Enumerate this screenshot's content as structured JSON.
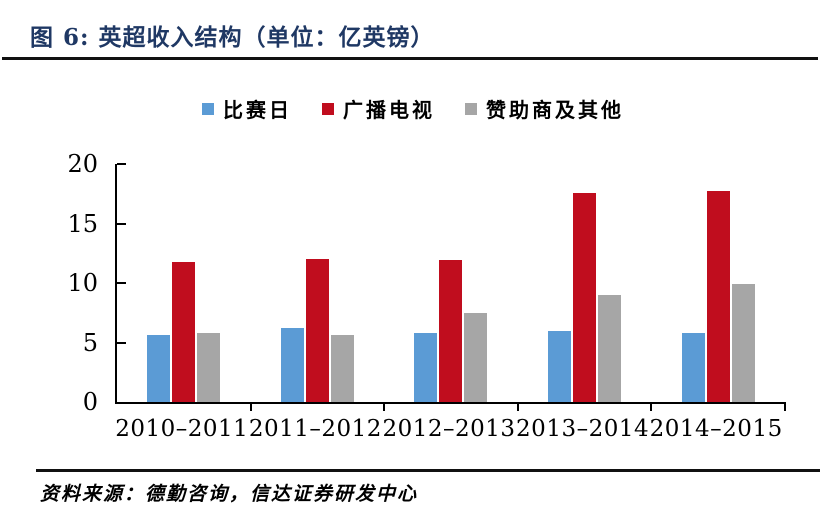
{
  "figure": {
    "title": "图 6:  英超收入结构（单位：亿英镑）",
    "source": "资料来源：德勤咨询，信达证券研发中心"
  },
  "colors": {
    "title_navy": "#1F3864",
    "rule": "#111111",
    "series_blue": "#5B9BD5",
    "series_red": "#C00D1E",
    "series_gray": "#A6A6A6"
  },
  "chart_data": {
    "type": "bar",
    "title": "英超收入结构（单位：亿英镑）",
    "categories": [
      "2010–2011",
      "2011–2012",
      "2012–2013",
      "2013–2014",
      "2014–2015"
    ],
    "series": [
      {
        "name": "比赛日",
        "color_key": "series_blue",
        "values": [
          5.6,
          6.2,
          5.8,
          6.0,
          5.8
        ]
      },
      {
        "name": "广播电视",
        "color_key": "series_red",
        "values": [
          11.8,
          12.0,
          11.9,
          17.6,
          17.7
        ]
      },
      {
        "name": "赞助商及其他",
        "color_key": "series_gray",
        "values": [
          5.8,
          5.6,
          7.5,
          9.0,
          9.9
        ]
      }
    ],
    "xlabel": "",
    "ylabel": "",
    "ylim": [
      0,
      20
    ],
    "yticks": [
      0,
      5,
      10,
      15,
      20
    ],
    "grid": false,
    "legend_position": "top"
  }
}
